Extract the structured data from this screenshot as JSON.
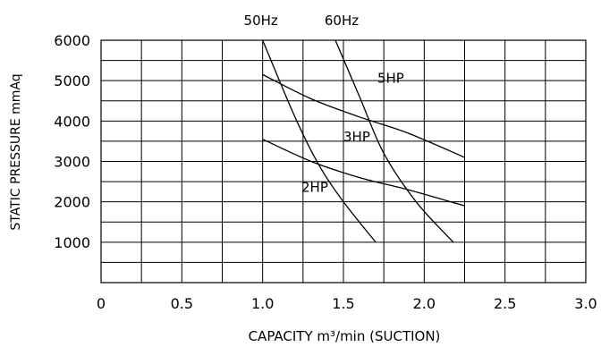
{
  "chart_data": {
    "type": "line",
    "xlabel": "CAPACITY m³/min (SUCTION)",
    "ylabel": "STATIC PRESSURE mmAq",
    "xlim": [
      0,
      3.0
    ],
    "ylim": [
      0,
      6000
    ],
    "x_ticks": [
      "0",
      "0.5",
      "1.0",
      "1.5",
      "2.0",
      "2.5",
      "3.0"
    ],
    "y_ticks": [
      "1000",
      "2000",
      "3000",
      "4000",
      "5000",
      "6000"
    ],
    "grid": true,
    "top_labels": [
      {
        "text": "50Hz",
        "x": 1.0
      },
      {
        "text": "60Hz",
        "x": 1.5
      }
    ],
    "curve_labels": [
      {
        "text": "5HP",
        "x": 1.71,
        "y": 4950
      },
      {
        "text": "3HP",
        "x": 1.5,
        "y": 3500
      },
      {
        "text": "2HP",
        "x": 1.24,
        "y": 2250
      }
    ],
    "series": [
      {
        "points": [
          [
            1.0,
            6000
          ],
          [
            1.2,
            4100
          ],
          [
            1.35,
            2900
          ],
          [
            1.5,
            2000
          ],
          [
            1.7,
            1000
          ]
        ]
      },
      {
        "points": [
          [
            1.45,
            6000
          ],
          [
            1.6,
            4600
          ],
          [
            1.75,
            3200
          ],
          [
            1.95,
            2000
          ],
          [
            2.18,
            1000
          ]
        ]
      },
      {
        "points": [
          [
            1.0,
            5150
          ],
          [
            1.3,
            4550
          ],
          [
            1.6,
            4100
          ],
          [
            1.9,
            3700
          ],
          [
            2.25,
            3100
          ]
        ]
      },
      {
        "points": [
          [
            1.0,
            3550
          ],
          [
            1.3,
            3000
          ],
          [
            1.6,
            2600
          ],
          [
            1.9,
            2300
          ],
          [
            2.25,
            1900
          ]
        ]
      }
    ]
  }
}
